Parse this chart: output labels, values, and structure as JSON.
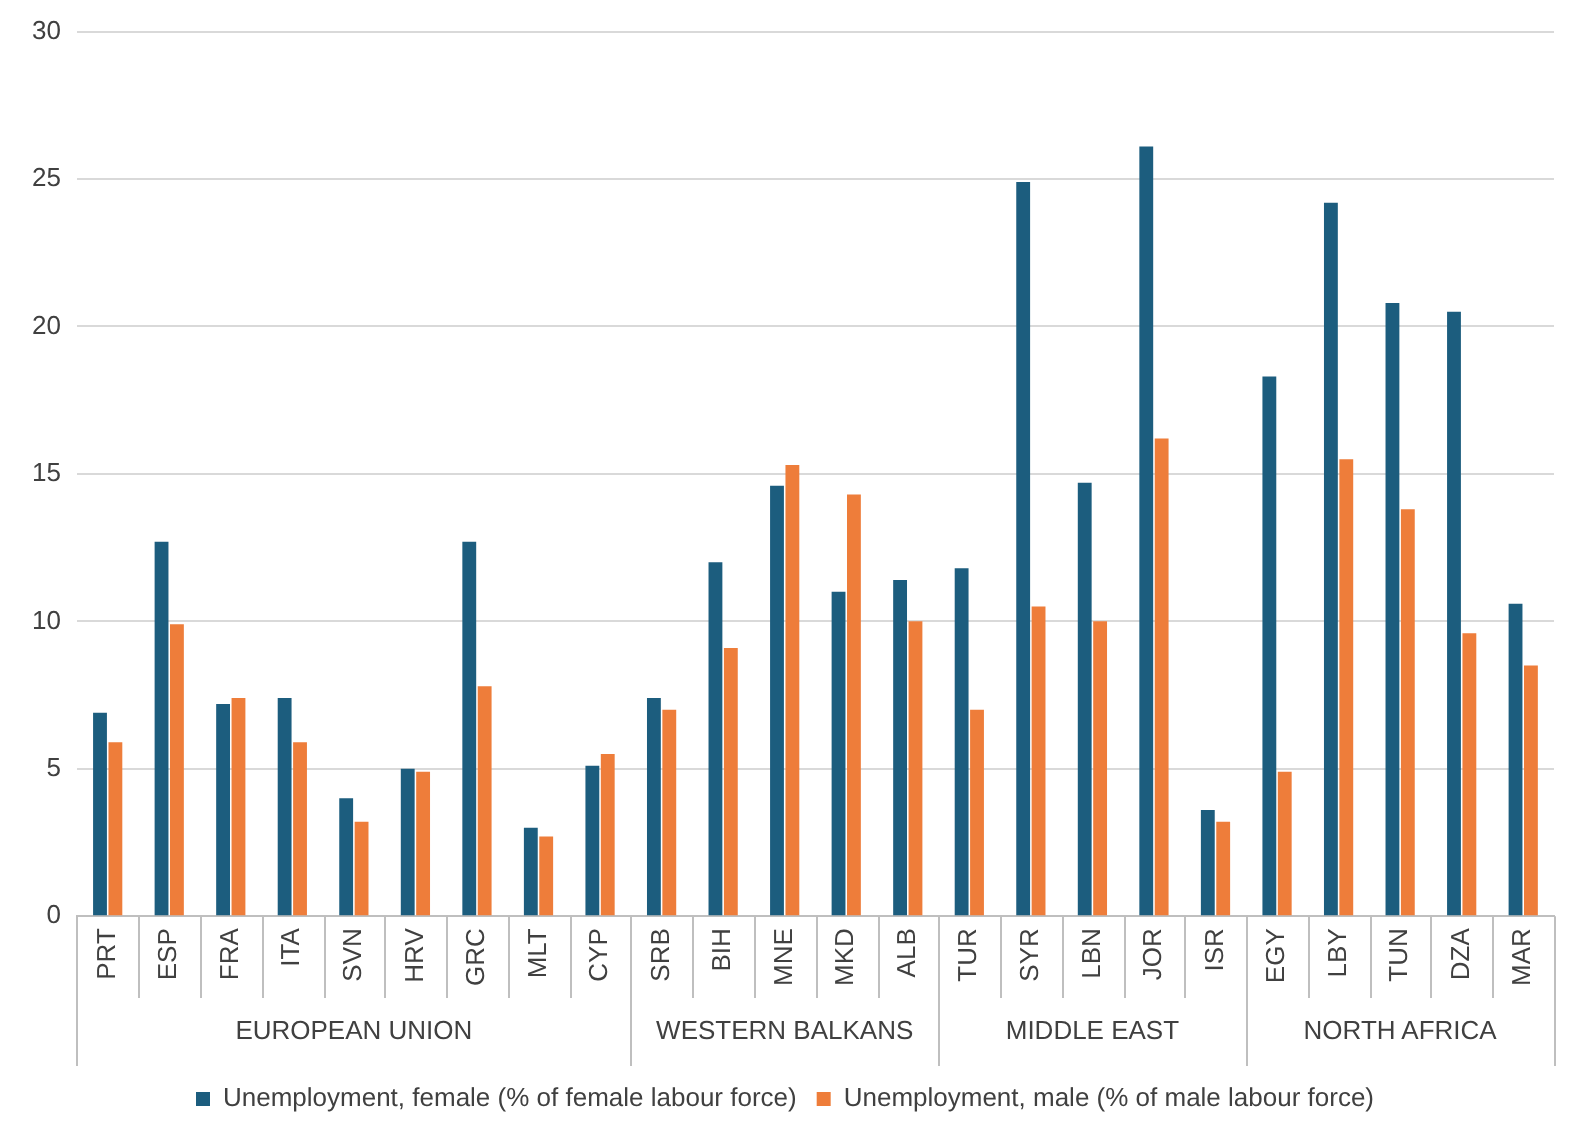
{
  "chart_data": {
    "type": "bar",
    "categories": [
      "PRT",
      "ESP",
      "FRA",
      "ITA",
      "SVN",
      "HRV",
      "GRC",
      "MLT",
      "CYP",
      "SRB",
      "BIH",
      "MNE",
      "MKD",
      "ALB",
      "TUR",
      "SYR",
      "LBN",
      "JOR",
      "ISR",
      "EGY",
      "LBY",
      "TUN",
      "DZA",
      "MAR"
    ],
    "series": [
      {
        "name": "Unemployment, female (% of female labour force)",
        "color": "#1c5d7e",
        "values": [
          6.9,
          12.7,
          7.2,
          7.4,
          4.0,
          5.0,
          12.7,
          3.0,
          5.1,
          7.4,
          12.0,
          14.6,
          11.0,
          11.4,
          11.8,
          24.9,
          14.7,
          26.1,
          3.6,
          18.3,
          24.2,
          20.8,
          20.5,
          10.6
        ]
      },
      {
        "name": "Unemployment, male (% of male labour force)",
        "color": "#ee7d3a",
        "values": [
          5.9,
          9.9,
          7.4,
          5.9,
          3.2,
          4.9,
          7.8,
          2.7,
          5.5,
          7.0,
          9.1,
          15.3,
          14.3,
          10.0,
          7.0,
          10.5,
          10.0,
          16.2,
          3.2,
          4.9,
          15.5,
          13.8,
          9.6,
          8.5
        ]
      }
    ],
    "annotations": [
      "EUROPEAN UNION",
      "WESTERN BALKANS",
      "MIDDLE EAST",
      "NORTH AFRICA"
    ],
    "ylim": [
      0,
      30
    ],
    "yticks": [
      0,
      5,
      10,
      15,
      20,
      25,
      30
    ],
    "grid": "y",
    "legend": "bottom"
  }
}
